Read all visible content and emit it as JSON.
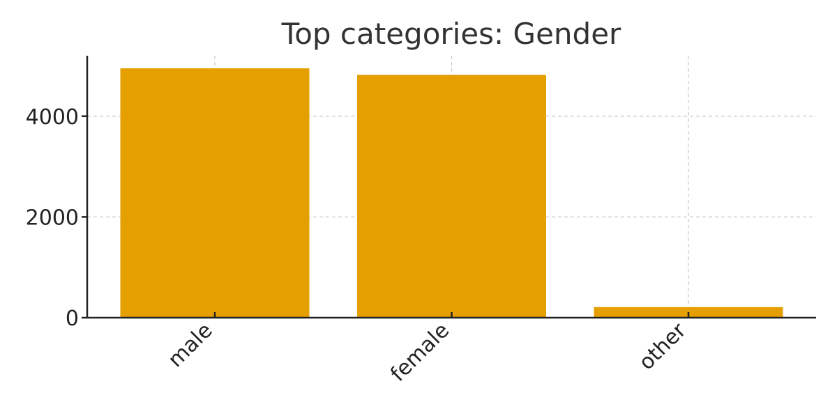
{
  "chart_data": {
    "type": "bar",
    "title": "Top categories: Gender",
    "xlabel": "",
    "ylabel": "",
    "categories": [
      "male",
      "female",
      "other"
    ],
    "values": [
      4950,
      4820,
      210
    ],
    "ylim": [
      0,
      5200
    ],
    "yticks": [
      0,
      2000,
      4000
    ],
    "ytick_labels": [
      "0",
      "2000",
      "4000"
    ],
    "grid": true,
    "bar_color": "#E69F00",
    "legend": "none"
  }
}
